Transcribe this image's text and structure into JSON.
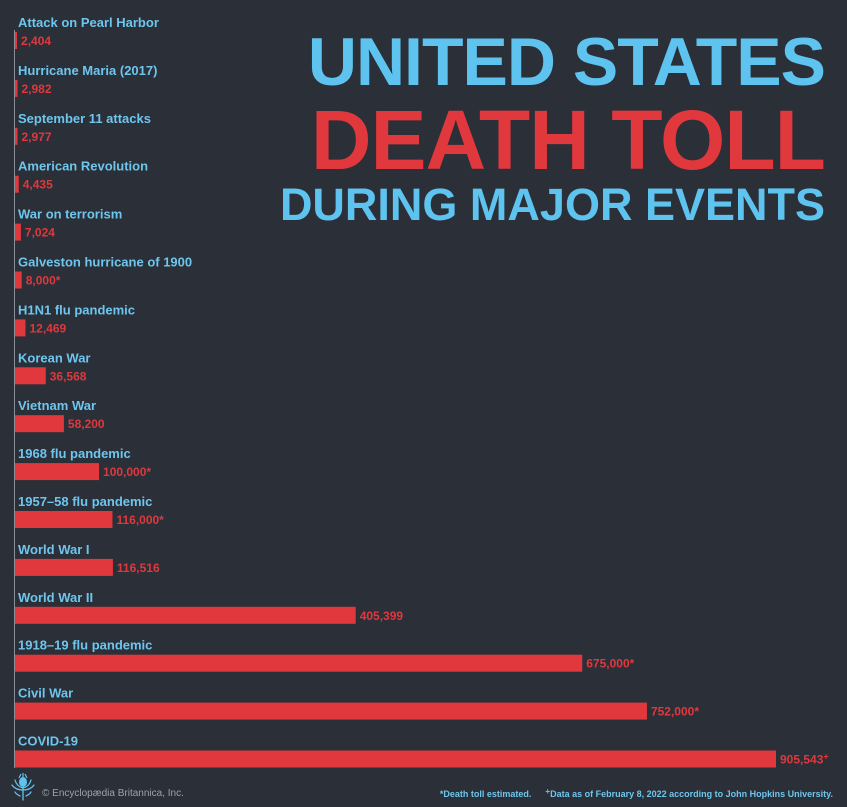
{
  "title": {
    "line1": "UNITED STATES",
    "line2": "DEATH TOLL",
    "line3": "DURING MAJOR EVENTS"
  },
  "colors": {
    "background": "#2a2f38",
    "accent_blue": "#5ec3ee",
    "accent_red": "#e0383c"
  },
  "chart_data": {
    "type": "bar",
    "orientation": "horizontal",
    "title": "UNITED STATES DEATH TOLL DURING MAJOR EVENTS",
    "categories": [
      "Attack on Pearl Harbor",
      "Hurricane Maria (2017)",
      "September 11 attacks",
      "American Revolution",
      "War on terrorism",
      "Galveston hurricane of 1900",
      "H1N1 flu pandemic",
      "Korean War",
      "Vietnam War",
      "1968 flu pandemic",
      "1957–58 flu pandemic",
      "World War I",
      "World War II",
      "1918–19 flu pandemic",
      "Civil War",
      "COVID-19"
    ],
    "values": [
      2404,
      2982,
      2977,
      4435,
      7024,
      8000,
      12469,
      36568,
      58200,
      100000,
      116000,
      116516,
      405399,
      675000,
      752000,
      905543
    ],
    "value_labels": [
      "2,404",
      "2,982",
      "2,977",
      "4,435",
      "7,024",
      "8,000*",
      "12,469",
      "36,568",
      "58,200",
      "100,000*",
      "116,000*",
      "116,516",
      "405,399",
      "675,000*",
      "752,000*",
      "905,543"
    ],
    "xlim": [
      0,
      905543
    ],
    "grid": false,
    "legend": "none"
  },
  "footer": {
    "copyright": "© Encyclopædia Britannica, Inc.",
    "note_estimated": "*Death toll estimated.",
    "note_covid_marker": "+",
    "note_covid": "Data as of February 8, 2022 according to John Hopkins University.",
    "covid_marker": "+"
  }
}
